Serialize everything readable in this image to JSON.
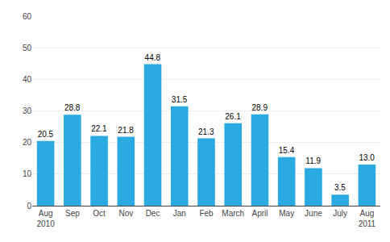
{
  "chart_data": {
    "type": "bar",
    "categories": [
      "Aug\n2010",
      "Sep",
      "Oct",
      "Nov",
      "Dec",
      "Jan",
      "Feb",
      "March",
      "April",
      "May",
      "June",
      "July",
      "Aug\n2011"
    ],
    "values": [
      20.5,
      28.8,
      22.1,
      21.8,
      44.8,
      31.5,
      21.3,
      26.1,
      28.9,
      15.4,
      11.9,
      3.5,
      13.0
    ],
    "value_labels": [
      "20.5",
      "28.8",
      "22.1",
      "21.8",
      "44.8",
      "31.5",
      "21.3",
      "26.1",
      "28.9",
      "15.4",
      "11.9",
      "3.5",
      "13.0"
    ],
    "color": "#29ABE2",
    "ylim": [
      0,
      60
    ],
    "yticks": [
      0,
      10,
      20,
      30,
      40,
      50,
      60
    ],
    "grid": true,
    "data_labels": true
  }
}
